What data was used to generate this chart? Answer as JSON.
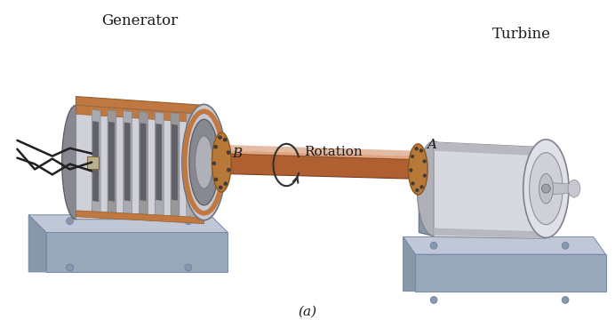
{
  "title": "(a)",
  "label_generator": "Generator",
  "label_turbine": "Turbine",
  "label_rotation": "Rotation",
  "label_A": "A",
  "label_B": "B",
  "bg_color": "#ffffff",
  "shaft_color": "#b06030",
  "shaft_highlight": "#d08050",
  "shaft_shadow": "#7a4020",
  "gen_body_light": "#d0d0d8",
  "gen_body_mid": "#b0b0b8",
  "gen_body_dark": "#888890",
  "gen_rib_color": "#9898a0",
  "gen_rib_dark": "#707078",
  "gen_front_light": "#c8c8d0",
  "gen_front_dark": "#888890",
  "gen_back_color": "#909098",
  "gen_copper": "#c07840",
  "gen_copper_dark": "#906030",
  "flange_color": "#b87838",
  "flange_dark": "#8a5820",
  "flange_light": "#d09850",
  "bolt_color": "#404040",
  "turb_light": "#d8d8e0",
  "turb_mid": "#b8b8c0",
  "turb_dark": "#989898",
  "turb_front_light": "#e0e0e8",
  "base_top": "#c0c8d8",
  "base_side": "#98a8b8",
  "base_front": "#8898a8",
  "wire_color": "#202020",
  "text_color": "#1a1a1a",
  "arrow_color": "#303030",
  "fig_width": 6.92,
  "fig_height": 3.6,
  "dpi": 100
}
